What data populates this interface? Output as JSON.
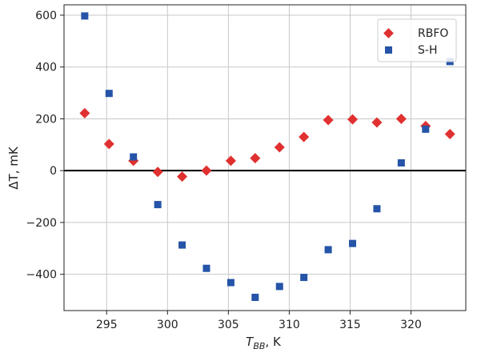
{
  "chart_data": {
    "type": "scatter",
    "xlabel_main": "T",
    "xlabel_sub": "BB",
    "xlabel_unit": ", K",
    "ylabel_main": "ΔT",
    "ylabel_unit": ", mK",
    "xlim": [
      291.5,
      324.5
    ],
    "ylim": [
      -540,
      640
    ],
    "xticks": [
      295,
      300,
      305,
      310,
      315,
      320
    ],
    "yticks": [
      600,
      400,
      200,
      0,
      -200,
      -400
    ],
    "ytick_labels": [
      "600",
      "400",
      "200",
      "0",
      "−200",
      "−400"
    ],
    "grid": true,
    "zero_line": true,
    "legend_position": "top-right",
    "series": [
      {
        "name": "RBFO",
        "marker": "diamond",
        "color": "#e03030",
        "points": [
          [
            293.2,
            222
          ],
          [
            295.2,
            103
          ],
          [
            297.2,
            38
          ],
          [
            299.2,
            -5
          ],
          [
            301.2,
            -23
          ],
          [
            303.2,
            0
          ],
          [
            305.2,
            38
          ],
          [
            307.2,
            48
          ],
          [
            309.2,
            90
          ],
          [
            311.2,
            130
          ],
          [
            313.2,
            195
          ],
          [
            315.2,
            198
          ],
          [
            317.2,
            186
          ],
          [
            319.2,
            200
          ],
          [
            321.2,
            172
          ],
          [
            323.2,
            141
          ]
        ]
      },
      {
        "name": "S-H",
        "marker": "square",
        "color": "#2554a8",
        "points": [
          [
            293.2,
            597
          ],
          [
            295.2,
            298
          ],
          [
            297.2,
            53
          ],
          [
            299.2,
            -131
          ],
          [
            301.2,
            -287
          ],
          [
            303.2,
            -377
          ],
          [
            305.2,
            -432
          ],
          [
            307.2,
            -489
          ],
          [
            309.2,
            -447
          ],
          [
            311.2,
            -412
          ],
          [
            313.2,
            -305
          ],
          [
            315.2,
            -281
          ],
          [
            317.2,
            -147
          ],
          [
            319.2,
            30
          ],
          [
            321.2,
            160
          ],
          [
            323.2,
            421
          ]
        ]
      }
    ]
  }
}
